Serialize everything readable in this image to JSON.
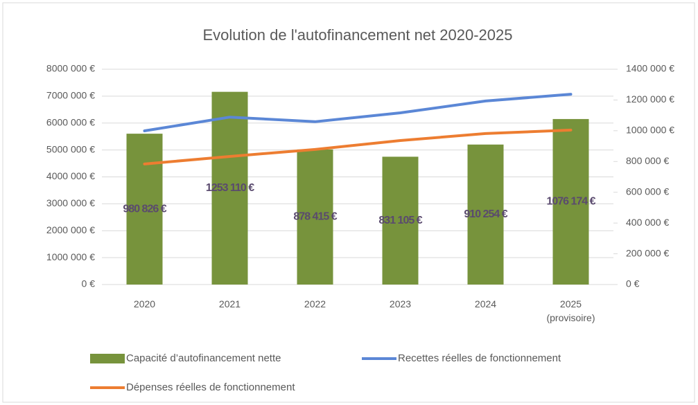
{
  "chart_data": {
    "type": "bar-line",
    "title": "Evolution de l'autofinancement net 2020-2025",
    "categories": [
      "2020",
      "2021",
      "2022",
      "2023",
      "2024",
      "2025 (provisoire)"
    ],
    "series": [
      {
        "name": "Capacité d’autofinancement nette",
        "type": "bar",
        "axis": "y2",
        "color": "#77933c",
        "values": [
          980826,
          1253110,
          878415,
          831105,
          910254,
          1076174
        ],
        "value_labels": [
          "980 826 €",
          "1253 110 €",
          "878 415 €",
          "831 105 €",
          "910 254 €",
          "1076 174 €"
        ]
      },
      {
        "name": "Recettes réelles de fonctionnement",
        "type": "line",
        "color": "#5b87d6",
        "values": [
          5710000,
          6220000,
          6050000,
          6380000,
          6820000,
          7070000
        ]
      },
      {
        "name": "Dépenses réelles de fonctionnement",
        "type": "line",
        "color": "#ed7d31",
        "values": [
          4480000,
          4760000,
          5020000,
          5350000,
          5610000,
          5740000
        ]
      }
    ],
    "ylim": [
      0,
      8000000
    ],
    "yticks": [
      {
        "value": 0,
        "label": "0 €"
      },
      {
        "value": 1000000,
        "label": "1000 000 €"
      },
      {
        "value": 2000000,
        "label": "2000 000 €"
      },
      {
        "value": 3000000,
        "label": "3000 000 €"
      },
      {
        "value": 4000000,
        "label": "4000 000 €"
      },
      {
        "value": 5000000,
        "label": "5000 000 €"
      },
      {
        "value": 6000000,
        "label": "6000 000 €"
      },
      {
        "value": 7000000,
        "label": "7000 000 €"
      },
      {
        "value": 8000000,
        "label": "8000 000 €"
      }
    ],
    "y2lim": [
      0,
      1400000
    ],
    "y2ticks": [
      {
        "value": 0,
        "label": "0 €"
      },
      {
        "value": 200000,
        "label": "200 000 €"
      },
      {
        "value": 400000,
        "label": "400 000 €"
      },
      {
        "value": 600000,
        "label": "600 000 €"
      },
      {
        "value": 800000,
        "label": "800 000 €"
      },
      {
        "value": 1000000,
        "label": "1000 000 €"
      },
      {
        "value": 1200000,
        "label": "1200 000 €"
      },
      {
        "value": 1400000,
        "label": "1400 000 €"
      }
    ],
    "grid": true,
    "legend": "bottom"
  }
}
